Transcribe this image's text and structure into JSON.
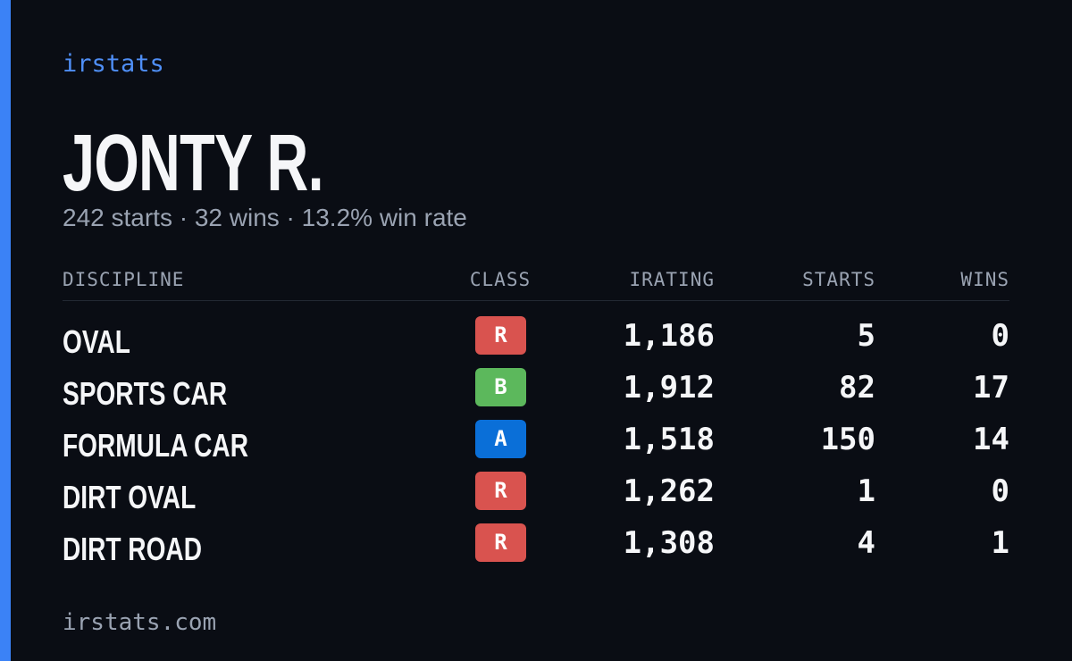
{
  "brand": "irstats",
  "player": {
    "name": "JONTY R.",
    "summary": "242 starts · 32 wins · 13.2% win rate"
  },
  "table": {
    "columns": [
      "DISCIPLINE",
      "CLASS",
      "IRATING",
      "STARTS",
      "WINS"
    ],
    "rows": [
      {
        "discipline": "OVAL",
        "class": "R",
        "class_color": "#d9534f",
        "irating": "1,186",
        "starts": "5",
        "wins": "0"
      },
      {
        "discipline": "SPORTS CAR",
        "class": "B",
        "class_color": "#5cb85c",
        "irating": "1,912",
        "starts": "82",
        "wins": "17"
      },
      {
        "discipline": "FORMULA CAR",
        "class": "A",
        "class_color": "#0a6fd8",
        "irating": "1,518",
        "starts": "150",
        "wins": "14"
      },
      {
        "discipline": "DIRT OVAL",
        "class": "R",
        "class_color": "#d9534f",
        "irating": "1,262",
        "starts": "1",
        "wins": "0"
      },
      {
        "discipline": "DIRT ROAD",
        "class": "R",
        "class_color": "#d9534f",
        "irating": "1,308",
        "starts": "4",
        "wins": "1"
      }
    ]
  },
  "footer": "irstats.com"
}
